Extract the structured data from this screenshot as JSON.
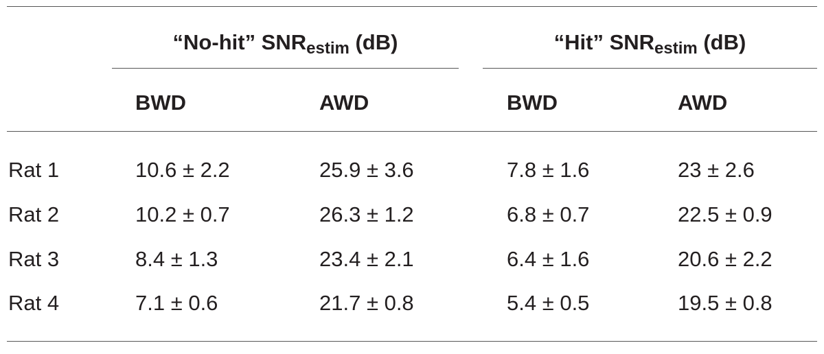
{
  "table": {
    "groups": [
      {
        "title": "“No-hit” SNR",
        "sub": "estim",
        "unit": "(dB)"
      },
      {
        "title": "“Hit” SNR",
        "sub": "estim",
        "unit": "(dB)"
      }
    ],
    "columns": [
      "BWD",
      "AWD",
      "BWD",
      "AWD"
    ],
    "rows": [
      [
        "Rat 1",
        "10.6 ± 2.2",
        "25.9 ± 3.6",
        "7.8 ± 1.6",
        "23 ± 2.6"
      ],
      [
        "Rat 2",
        "10.2 ± 0.7",
        "26.3 ± 1.2",
        "6.8 ± 0.7",
        "22.5 ± 0.9"
      ],
      [
        "Rat 3",
        "8.4 ± 1.3",
        "23.4 ± 2.1",
        "6.4 ± 1.6",
        "20.6 ± 2.2"
      ],
      [
        "Rat 4",
        "7.1 ± 0.6",
        "21.7 ± 0.8",
        "5.4 ± 0.5",
        "19.5 ± 0.8"
      ]
    ]
  }
}
